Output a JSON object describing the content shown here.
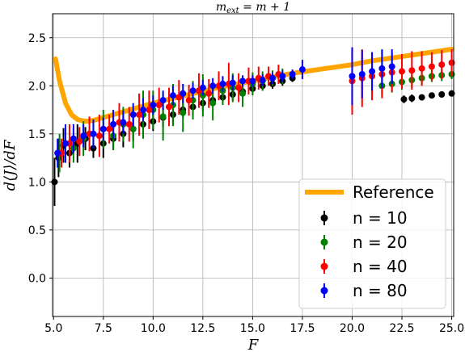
{
  "chart_data": {
    "type": "scatter",
    "title": "m_ext = m + 1",
    "xlabel": "F",
    "ylabel": "d⟨J⟩/dF",
    "xlim": [
      4.95,
      25.1
    ],
    "ylim": [
      -0.4,
      2.75
    ],
    "xticks": [
      "5.0",
      "7.5",
      "10.0",
      "12.5",
      "15.0",
      "17.5",
      "20.0",
      "22.5",
      "25.0"
    ],
    "yticks": [
      "0.0",
      "0.5",
      "1.0",
      "1.5",
      "2.0",
      "2.5"
    ],
    "grid": true,
    "legend_position": "bottom-right",
    "reference": {
      "name": "Reference",
      "color": "#FFA500",
      "x": [
        5.1,
        5.3,
        5.6,
        5.9,
        6.2,
        6.6,
        7.0,
        7.5,
        8.0,
        9.0,
        10.0,
        11.0,
        12.0,
        13.0,
        14.0,
        15.0,
        16.0,
        17.0,
        18.0,
        19.0,
        20.0,
        21.0,
        22.0,
        23.0,
        24.0,
        25.0
      ],
      "y": [
        2.28,
        2.05,
        1.82,
        1.7,
        1.65,
        1.63,
        1.64,
        1.67,
        1.7,
        1.76,
        1.82,
        1.87,
        1.92,
        1.97,
        2.01,
        2.05,
        2.09,
        2.13,
        2.16,
        2.19,
        2.22,
        2.26,
        2.29,
        2.32,
        2.35,
        2.38
      ]
    },
    "series": [
      {
        "name": "n = 10",
        "color": "#000000",
        "x": [
          5.05,
          5.25,
          5.5,
          5.8,
          6.2,
          6.6,
          7.0,
          7.5,
          8.0,
          8.5,
          9.0,
          9.5,
          10.0,
          10.5,
          11.0,
          11.5,
          12.0,
          12.5,
          13.0,
          13.5,
          14.0,
          14.5,
          15.0,
          15.5,
          16.0,
          16.5,
          17.0,
          22.6,
          23.0,
          23.5,
          24.0,
          24.5,
          25.0
        ],
        "y": [
          1.0,
          1.25,
          1.38,
          1.3,
          1.4,
          1.45,
          1.35,
          1.4,
          1.45,
          1.5,
          1.55,
          1.6,
          1.63,
          1.67,
          1.7,
          1.75,
          1.78,
          1.82,
          1.85,
          1.88,
          1.91,
          1.94,
          1.97,
          2.0,
          2.02,
          2.05,
          2.08,
          1.86,
          1.87,
          1.88,
          1.9,
          1.91,
          1.92
        ],
        "err": [
          0.25,
          0.2,
          0.18,
          0.15,
          0.2,
          0.12,
          0.1,
          0.15,
          0.12,
          0.14,
          0.12,
          0.12,
          0.1,
          0.1,
          0.1,
          0.08,
          0.08,
          0.08,
          0.06,
          0.06,
          0.06,
          0.05,
          0.05,
          0.05,
          0.05,
          0.05,
          0.04,
          0.04,
          0.04,
          0.03,
          0.03,
          0.03,
          0.03
        ]
      },
      {
        "name": "n = 20",
        "color": "#008000",
        "x": [
          5.3,
          5.6,
          6.0,
          6.5,
          7.0,
          7.5,
          8.0,
          8.5,
          9.0,
          9.5,
          10.0,
          10.5,
          11.0,
          11.5,
          12.0,
          12.5,
          13.0,
          13.5,
          14.0,
          14.5,
          15.0,
          15.5,
          16.0,
          16.5,
          21.5,
          22.0,
          22.5,
          23.0,
          23.5,
          24.0,
          24.5,
          25.0
        ],
        "y": [
          1.3,
          1.4,
          1.35,
          1.45,
          1.5,
          1.55,
          1.48,
          1.6,
          1.55,
          1.7,
          1.75,
          1.68,
          1.8,
          1.72,
          1.85,
          1.9,
          1.82,
          1.95,
          1.98,
          1.92,
          2.02,
          2.05,
          2.08,
          2.1,
          2.0,
          2.02,
          2.04,
          2.06,
          2.08,
          2.1,
          2.11,
          2.12
        ],
        "err": [
          0.2,
          0.15,
          0.15,
          0.18,
          0.12,
          0.2,
          0.15,
          0.18,
          0.2,
          0.25,
          0.2,
          0.25,
          0.22,
          0.2,
          0.2,
          0.22,
          0.18,
          0.15,
          0.15,
          0.14,
          0.12,
          0.1,
          0.08,
          0.08,
          0.1,
          0.09,
          0.08,
          0.08,
          0.07,
          0.06,
          0.06,
          0.05
        ]
      },
      {
        "name": "n = 40",
        "color": "#FF0000",
        "x": [
          5.4,
          5.8,
          6.3,
          6.8,
          7.3,
          7.8,
          8.3,
          8.8,
          9.3,
          9.8,
          10.3,
          10.8,
          11.3,
          11.8,
          12.3,
          12.8,
          13.3,
          13.8,
          14.3,
          14.8,
          15.3,
          15.8,
          16.3,
          20.0,
          20.5,
          21.0,
          21.5,
          22.0,
          22.5,
          23.0,
          23.5,
          24.0,
          24.5,
          25.0
        ],
        "y": [
          1.3,
          1.4,
          1.42,
          1.5,
          1.48,
          1.55,
          1.62,
          1.6,
          1.7,
          1.75,
          1.8,
          1.78,
          1.88,
          1.85,
          1.95,
          1.92,
          2.0,
          2.02,
          1.98,
          2.05,
          2.08,
          2.1,
          2.12,
          2.05,
          2.08,
          2.1,
          2.12,
          2.14,
          2.15,
          2.16,
          2.18,
          2.2,
          2.22,
          2.24
        ],
        "err": [
          0.15,
          0.2,
          0.15,
          0.18,
          0.22,
          0.15,
          0.2,
          0.18,
          0.22,
          0.2,
          0.18,
          0.2,
          0.18,
          0.16,
          0.18,
          0.15,
          0.15,
          0.22,
          0.15,
          0.14,
          0.12,
          0.1,
          0.1,
          0.35,
          0.3,
          0.25,
          0.25,
          0.2,
          0.18,
          0.2,
          0.18,
          0.15,
          0.15,
          0.14
        ]
      },
      {
        "name": "n = 80",
        "color": "#0000FF",
        "x": [
          5.2,
          5.6,
          6.0,
          6.5,
          7.0,
          7.5,
          8.0,
          8.5,
          9.0,
          9.5,
          10.0,
          10.5,
          11.0,
          11.5,
          12.0,
          12.5,
          13.0,
          13.5,
          14.0,
          14.5,
          15.0,
          15.5,
          16.0,
          16.5,
          17.0,
          17.5,
          20.0,
          20.5,
          21.0,
          21.5,
          22.0
        ],
        "y": [
          1.3,
          1.4,
          1.45,
          1.48,
          1.5,
          1.55,
          1.6,
          1.62,
          1.7,
          1.75,
          1.8,
          1.85,
          1.9,
          1.92,
          1.95,
          1.98,
          2.0,
          2.02,
          2.03,
          2.05,
          2.05,
          2.06,
          2.08,
          2.1,
          2.12,
          2.17,
          2.1,
          2.12,
          2.15,
          2.18,
          2.2
        ],
        "err": [
          0.15,
          0.2,
          0.15,
          0.12,
          0.15,
          0.12,
          0.15,
          0.12,
          0.12,
          0.12,
          0.1,
          0.1,
          0.1,
          0.1,
          0.08,
          0.08,
          0.08,
          0.08,
          0.08,
          0.06,
          0.06,
          0.06,
          0.06,
          0.06,
          0.05,
          0.1,
          0.3,
          0.25,
          0.2,
          0.2,
          0.18
        ]
      }
    ]
  }
}
